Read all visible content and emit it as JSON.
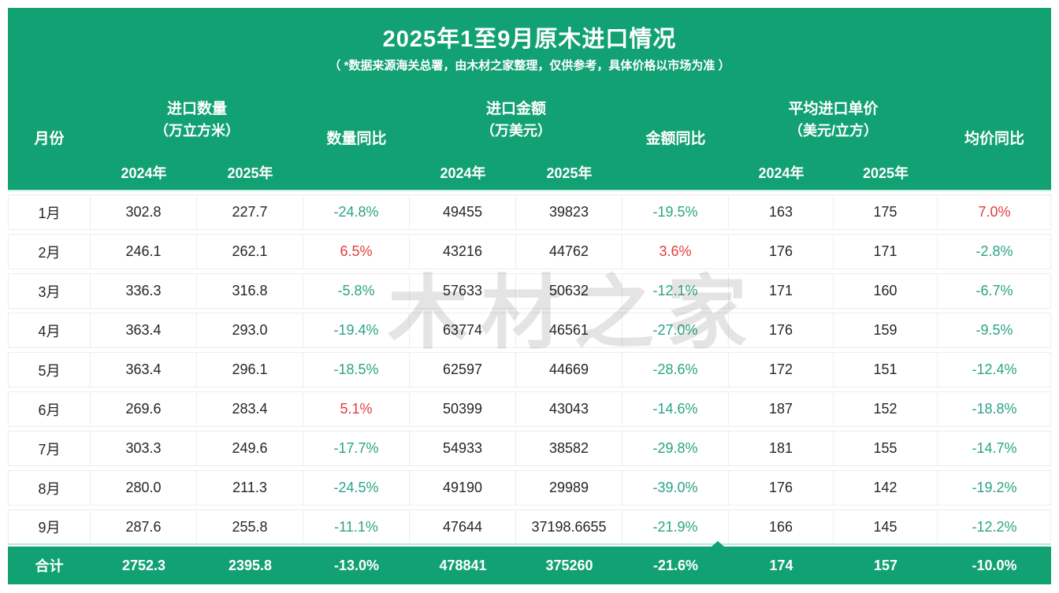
{
  "title": "2025年1至9月原木进口情况",
  "subtitle": "（ *数据来源海关总署，由木材之家整理，仅供参考，具体价格以市场为准 ）",
  "watermark": "木材之家",
  "colors": {
    "brand_green": "#12a173",
    "yoy_down_green": "#2aa485",
    "yoy_up_red": "#e23d3d"
  },
  "header": {
    "month": "月份",
    "groups": [
      {
        "name": "进口数量",
        "unit": "（万立方米）"
      },
      {
        "name": "进口金额",
        "unit": "（万美元）"
      },
      {
        "name": "平均进口单价",
        "unit": "（美元/立方）"
      }
    ],
    "yoy": [
      "数量同比",
      "金额同比",
      "均价同比"
    ],
    "years": [
      "2024年",
      "2025年"
    ]
  },
  "rows": [
    {
      "month": "1月",
      "qty_2024": "302.8",
      "qty_2025": "227.7",
      "qty_yoy": "-24.8%",
      "qty_yoy_color": "green",
      "amt_2024": "49455",
      "amt_2025": "39823",
      "amt_yoy": "-19.5%",
      "amt_yoy_color": "green",
      "price_2024": "163",
      "price_2025": "175",
      "price_yoy": "7.0%",
      "price_yoy_color": "red"
    },
    {
      "month": "2月",
      "qty_2024": "246.1",
      "qty_2025": "262.1",
      "qty_yoy": "6.5%",
      "qty_yoy_color": "red",
      "amt_2024": "43216",
      "amt_2025": "44762",
      "amt_yoy": "3.6%",
      "amt_yoy_color": "red",
      "price_2024": "176",
      "price_2025": "171",
      "price_yoy": "-2.8%",
      "price_yoy_color": "green"
    },
    {
      "month": "3月",
      "qty_2024": "336.3",
      "qty_2025": "316.8",
      "qty_yoy": "-5.8%",
      "qty_yoy_color": "green",
      "amt_2024": "57633",
      "amt_2025": "50632",
      "amt_yoy": "-12.1%",
      "amt_yoy_color": "green",
      "price_2024": "171",
      "price_2025": "160",
      "price_yoy": "-6.7%",
      "price_yoy_color": "green"
    },
    {
      "month": "4月",
      "qty_2024": "363.4",
      "qty_2025": "293.0",
      "qty_yoy": "-19.4%",
      "qty_yoy_color": "green",
      "amt_2024": "63774",
      "amt_2025": "46561",
      "amt_yoy": "-27.0%",
      "amt_yoy_color": "green",
      "price_2024": "176",
      "price_2025": "159",
      "price_yoy": "-9.5%",
      "price_yoy_color": "green"
    },
    {
      "month": "5月",
      "qty_2024": "363.4",
      "qty_2025": "296.1",
      "qty_yoy": "-18.5%",
      "qty_yoy_color": "green",
      "amt_2024": "62597",
      "amt_2025": "44669",
      "amt_yoy": "-28.6%",
      "amt_yoy_color": "green",
      "price_2024": "172",
      "price_2025": "151",
      "price_yoy": "-12.4%",
      "price_yoy_color": "green"
    },
    {
      "month": "6月",
      "qty_2024": "269.6",
      "qty_2025": "283.4",
      "qty_yoy": "5.1%",
      "qty_yoy_color": "red",
      "amt_2024": "50399",
      "amt_2025": "43043",
      "amt_yoy": "-14.6%",
      "amt_yoy_color": "green",
      "price_2024": "187",
      "price_2025": "152",
      "price_yoy": "-18.8%",
      "price_yoy_color": "green"
    },
    {
      "month": "7月",
      "qty_2024": "303.3",
      "qty_2025": "249.6",
      "qty_yoy": "-17.7%",
      "qty_yoy_color": "green",
      "amt_2024": "54933",
      "amt_2025": "38582",
      "amt_yoy": "-29.8%",
      "amt_yoy_color": "green",
      "price_2024": "181",
      "price_2025": "155",
      "price_yoy": "-14.7%",
      "price_yoy_color": "green"
    },
    {
      "month": "8月",
      "qty_2024": "280.0",
      "qty_2025": "211.3",
      "qty_yoy": "-24.5%",
      "qty_yoy_color": "green",
      "amt_2024": "49190",
      "amt_2025": "29989",
      "amt_yoy": "-39.0%",
      "amt_yoy_color": "green",
      "price_2024": "176",
      "price_2025": "142",
      "price_yoy": "-19.2%",
      "price_yoy_color": "green"
    },
    {
      "month": "9月",
      "qty_2024": "287.6",
      "qty_2025": "255.8",
      "qty_yoy": "-11.1%",
      "qty_yoy_color": "green",
      "amt_2024": "47644",
      "amt_2025": "37198.6655",
      "amt_yoy": "-21.9%",
      "amt_yoy_color": "green",
      "price_2024": "166",
      "price_2025": "145",
      "price_yoy": "-12.2%",
      "price_yoy_color": "green"
    }
  ],
  "total": {
    "label": "合计",
    "qty_2024": "2752.3",
    "qty_2025": "2395.8",
    "qty_yoy": "-13.0%",
    "amt_2024": "478841",
    "amt_2025": "375260",
    "amt_yoy": "-21.6%",
    "price_2024": "174",
    "price_2025": "157",
    "price_yoy": "-10.0%"
  },
  "chart_data": {
    "type": "table",
    "title": "2025年1至9月原木进口情况",
    "subtitle": "（ *数据来源海关总署，由木材之家整理，仅供参考，具体价格以市场为准 ）",
    "columns": [
      "月份",
      "进口数量2024年(万立方米)",
      "进口数量2025年(万立方米)",
      "数量同比",
      "进口金额2024年(万美元)",
      "进口金额2025年(万美元)",
      "金额同比",
      "平均进口单价2024年(美元/立方)",
      "平均进口单价2025年(美元/立方)",
      "均价同比"
    ],
    "rows": [
      [
        "1月",
        302.8,
        227.7,
        "-24.8%",
        49455,
        39823,
        "-19.5%",
        163,
        175,
        "7.0%"
      ],
      [
        "2月",
        246.1,
        262.1,
        "6.5%",
        43216,
        44762,
        "3.6%",
        176,
        171,
        "-2.8%"
      ],
      [
        "3月",
        336.3,
        316.8,
        "-5.8%",
        57633,
        50632,
        "-12.1%",
        171,
        160,
        "-6.7%"
      ],
      [
        "4月",
        363.4,
        293.0,
        "-19.4%",
        63774,
        46561,
        "-27.0%",
        176,
        159,
        "-9.5%"
      ],
      [
        "5月",
        363.4,
        296.1,
        "-18.5%",
        62597,
        44669,
        "-28.6%",
        172,
        151,
        "-12.4%"
      ],
      [
        "6月",
        269.6,
        283.4,
        "5.1%",
        50399,
        43043,
        "-14.6%",
        187,
        152,
        "-18.8%"
      ],
      [
        "7月",
        303.3,
        249.6,
        "-17.7%",
        54933,
        38582,
        "-29.8%",
        181,
        155,
        "-14.7%"
      ],
      [
        "8月",
        280.0,
        211.3,
        "-24.5%",
        49190,
        29989,
        "-39.0%",
        176,
        142,
        "-19.2%"
      ],
      [
        "9月",
        287.6,
        255.8,
        "-11.1%",
        47644,
        37198.6655,
        "-21.9%",
        166,
        145,
        "-12.2%"
      ]
    ],
    "total_row": [
      "合计",
      2752.3,
      2395.8,
      "-13.0%",
      478841,
      375260,
      "-21.6%",
      174,
      157,
      "-10.0%"
    ]
  }
}
